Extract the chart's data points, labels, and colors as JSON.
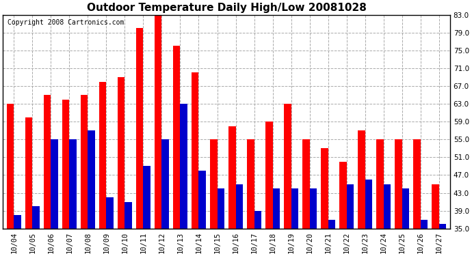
{
  "title": "Outdoor Temperature Daily High/Low 20081028",
  "copyright": "Copyright 2008 Cartronics.com",
  "dates": [
    "10/04",
    "10/05",
    "10/06",
    "10/07",
    "10/08",
    "10/09",
    "10/10",
    "10/11",
    "10/12",
    "10/13",
    "10/14",
    "10/15",
    "10/16",
    "10/17",
    "10/18",
    "10/19",
    "10/20",
    "10/21",
    "10/22",
    "10/23",
    "10/24",
    "10/25",
    "10/26",
    "10/27"
  ],
  "highs": [
    63,
    60,
    65,
    64,
    65,
    68,
    69,
    80,
    83,
    76,
    70,
    55,
    58,
    55,
    59,
    63,
    55,
    53,
    50,
    57,
    55,
    55,
    55,
    45
  ],
  "lows": [
    38,
    40,
    55,
    55,
    57,
    42,
    41,
    49,
    55,
    63,
    48,
    44,
    45,
    39,
    44,
    44,
    44,
    37,
    45,
    46,
    45,
    44,
    37,
    36
  ],
  "ymin": 35.0,
  "ymax": 83.0,
  "yticks": [
    35.0,
    39.0,
    43.0,
    47.0,
    51.0,
    55.0,
    59.0,
    63.0,
    67.0,
    71.0,
    75.0,
    79.0,
    83.0
  ],
  "high_color": "#ff0000",
  "low_color": "#0000cc",
  "bg_color": "#ffffff",
  "grid_color": "#aaaaaa",
  "title_fontsize": 11,
  "tick_fontsize": 7.5,
  "copyright_fontsize": 7
}
